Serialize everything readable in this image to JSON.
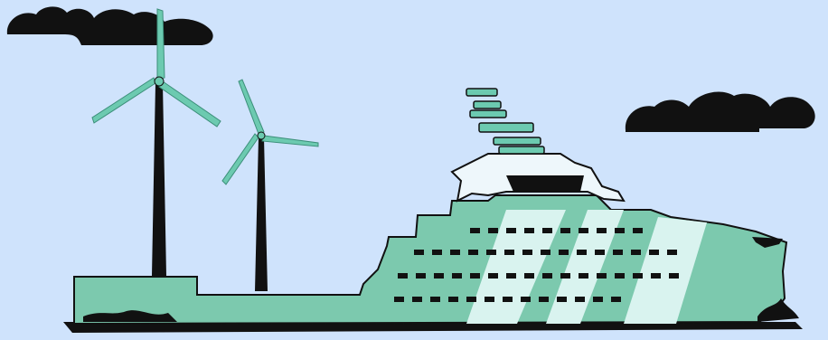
{
  "scene": {
    "colors": {
      "sky": "#cfe3fc",
      "hull": "#7cc9ae",
      "hull_light": "#d9f3ef",
      "outline": "#111111",
      "turbine_blade": "#6ccab0",
      "cloud": "#111111",
      "bridge_white": "#eef7fb"
    },
    "icons": [
      "cloud-icon",
      "wind-turbine-icon",
      "ship-icon"
    ]
  }
}
